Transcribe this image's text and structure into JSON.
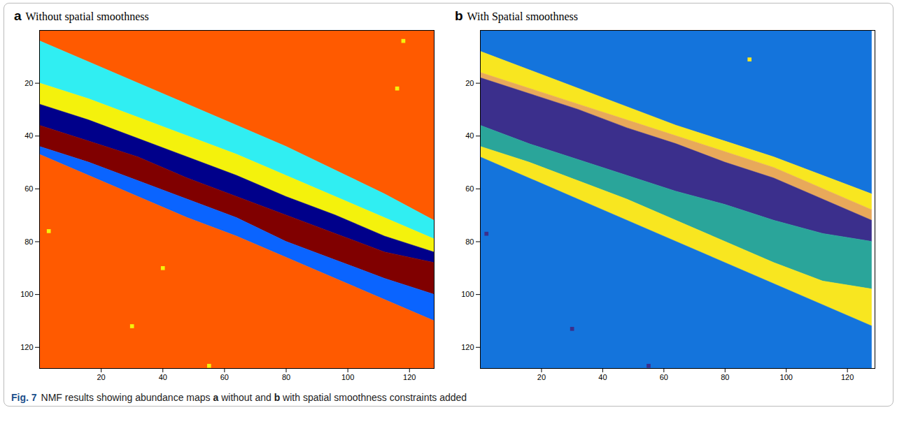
{
  "chart_data": [
    {
      "panel": "a",
      "title": "Without spatial smoothness",
      "type": "area",
      "stacked": true,
      "x": [
        0,
        16,
        32,
        48,
        64,
        80,
        96,
        112,
        128
      ],
      "series": [
        {
          "color": "#ff5a00",
          "values": [
            4,
            12,
            20,
            28,
            36,
            44,
            53,
            62,
            72
          ]
        },
        {
          "color": "#30eef2",
          "values": [
            16,
            14,
            13,
            12,
            11,
            11,
            10,
            9,
            7
          ]
        },
        {
          "color": "#f4f20c",
          "values": [
            8,
            8,
            8,
            8,
            8,
            8,
            7,
            7,
            5
          ]
        },
        {
          "color": "#00008a",
          "values": [
            8,
            8,
            7,
            8,
            8,
            7,
            7,
            6,
            4
          ]
        },
        {
          "color": "#800000",
          "values": [
            8,
            8,
            9,
            8,
            8,
            10,
            10,
            10,
            12
          ]
        },
        {
          "color": "#0a64ff",
          "values": [
            3,
            5,
            6,
            7,
            7,
            6,
            7,
            8,
            10
          ]
        },
        {
          "color": "#ff5a00",
          "values": [
            81,
            73,
            65,
            57,
            50,
            42,
            34,
            26,
            18
          ]
        }
      ],
      "spots": [
        {
          "x": 118,
          "y": 4,
          "color": "#f4f20c"
        },
        {
          "x": 116,
          "y": 22,
          "color": "#f4f20c"
        },
        {
          "x": 3,
          "y": 76,
          "color": "#f4f20c"
        },
        {
          "x": 40,
          "y": 90,
          "color": "#f4f20c"
        },
        {
          "x": 30,
          "y": 112,
          "color": "#f4f20c"
        },
        {
          "x": 55,
          "y": 127,
          "color": "#f4f20c"
        }
      ],
      "xlim": [
        0,
        128
      ],
      "ylim": [
        128,
        0
      ],
      "xticks": [
        20,
        40,
        60,
        80,
        100,
        120
      ],
      "yticks": [
        20,
        40,
        60,
        80,
        100,
        120
      ]
    },
    {
      "panel": "b",
      "title": "With Spatial smoothness",
      "type": "area",
      "stacked": true,
      "x": [
        0,
        16,
        32,
        48,
        64,
        80,
        96,
        112,
        128
      ],
      "series": [
        {
          "color": "#1474dc",
          "values": [
            8,
            15,
            22,
            29,
            36,
            42,
            48,
            55,
            62
          ]
        },
        {
          "color": "#f8e620",
          "values": [
            8,
            7,
            6,
            5,
            4,
            4,
            4,
            5,
            6
          ]
        },
        {
          "color": "#e8a95a",
          "values": [
            2,
            2,
            2,
            3,
            3,
            4,
            4,
            4,
            4
          ]
        },
        {
          "color": "#3b2f8c",
          "values": [
            18,
            19,
            19,
            18,
            18,
            16,
            16,
            13,
            8
          ]
        },
        {
          "color": "#2aa59a",
          "values": [
            8,
            7,
            8,
            9,
            11,
            14,
            16,
            18,
            18
          ]
        },
        {
          "color": "#f8e620",
          "values": [
            4,
            6,
            7,
            8,
            8,
            8,
            8,
            9,
            14
          ]
        },
        {
          "color": "#1474dc",
          "values": [
            80,
            72,
            64,
            56,
            48,
            40,
            32,
            24,
            16
          ]
        }
      ],
      "spots": [
        {
          "x": 88,
          "y": 11,
          "color": "#f8e620"
        },
        {
          "x": 2,
          "y": 77,
          "color": "#3b2f8c"
        },
        {
          "x": 30,
          "y": 113,
          "color": "#3b2f8c"
        },
        {
          "x": 55,
          "y": 127,
          "color": "#3b2f8c"
        }
      ],
      "xlim": [
        0,
        129
      ],
      "ylim": [
        128,
        0
      ],
      "xticks": [
        20,
        40,
        60,
        80,
        100,
        120
      ],
      "yticks": [
        20,
        40,
        60,
        80,
        100,
        120
      ]
    }
  ],
  "caption": {
    "label": "Fig. 7",
    "parts": [
      "NMF results showing abundance maps ",
      "a",
      " without and ",
      "b",
      " with spatial smoothness constraints added"
    ]
  }
}
